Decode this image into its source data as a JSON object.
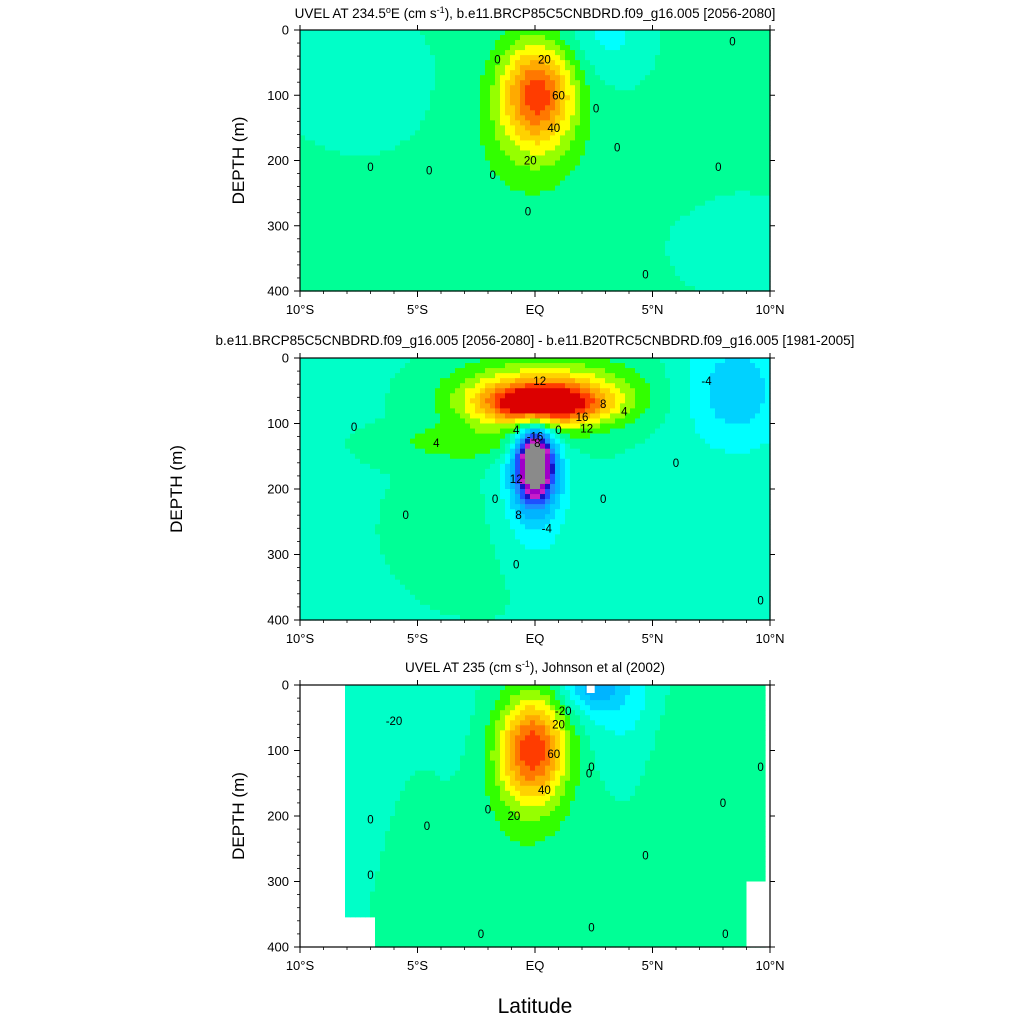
{
  "figure": {
    "xlabel": "Latitude"
  },
  "colors": {
    "levels": [
      "#8a8a8a",
      "#a000c8",
      "#c81ec8",
      "#1414c8",
      "#1e50ff",
      "#1e8cff",
      "#00b4ff",
      "#00d2ff",
      "#00ffff",
      "#00ffc8",
      "#00ff96",
      "#32ff00",
      "#96ff00",
      "#ffff00",
      "#ffd200",
      "#ffaa00",
      "#ff7800",
      "#ff3c00",
      "#dc0000"
    ],
    "background": "#ffffff",
    "axis": "#000000"
  },
  "chart_data": [
    {
      "type": "heatmap",
      "title_parts": [
        "UVEL AT 234.5",
        "o",
        "E (cm s",
        "-1",
        "), b.e11.BRCP85C5CNBDRD.f09_g16.005 [2056-2080]"
      ],
      "ylabel": "DEPTH (m)",
      "xlim": [
        -10,
        10
      ],
      "ylim": [
        400,
        0
      ],
      "x_ticks": [
        -10,
        -5,
        0,
        5,
        10
      ],
      "x_ticklabels": [
        "10°S",
        "5°S",
        "EQ",
        "5°N",
        "10°N"
      ],
      "y_ticks": [
        0,
        100,
        200,
        300,
        400
      ],
      "y_ticklabels": [
        "0",
        "100",
        "200",
        "300",
        "400"
      ],
      "contour_interval": 10,
      "contour_labels": [
        {
          "text": "20",
          "x": 0.4,
          "y": 45
        },
        {
          "text": "60",
          "x": 1.0,
          "y": 100
        },
        {
          "text": "40",
          "x": 0.8,
          "y": 150
        },
        {
          "text": "20",
          "x": -0.2,
          "y": 200
        },
        {
          "text": "0",
          "x": -1.6,
          "y": 45
        },
        {
          "text": "0",
          "x": -7.0,
          "y": 210
        },
        {
          "text": "0",
          "x": -4.5,
          "y": 215
        },
        {
          "text": "0",
          "x": -1.8,
          "y": 222
        },
        {
          "text": "0",
          "x": -0.3,
          "y": 278
        },
        {
          "text": "0",
          "x": 2.6,
          "y": 120
        },
        {
          "text": "0",
          "x": 3.5,
          "y": 180
        },
        {
          "text": "0",
          "x": 8.4,
          "y": 18
        },
        {
          "text": "0",
          "x": 7.8,
          "y": 210
        },
        {
          "text": "0",
          "x": 4.7,
          "y": 375
        }
      ]
    },
    {
      "type": "heatmap",
      "title_parts": [
        "b.e11.BRCP85C5CNBDRD.f09_g16.005 [2056-2080] - b.e11.B20TRC5CNBDRD.f09_g16.005 [1981-2005]"
      ],
      "ylabel": "DEPTH (m)",
      "xlim": [
        -10,
        10
      ],
      "ylim": [
        400,
        0
      ],
      "x_ticks": [
        -10,
        -5,
        0,
        5,
        10
      ],
      "x_ticklabels": [
        "10°S",
        "5°S",
        "EQ",
        "5°N",
        "10°N"
      ],
      "y_ticks": [
        0,
        100,
        200,
        300,
        400
      ],
      "y_ticklabels": [
        "0",
        "100",
        "200",
        "300",
        "400"
      ],
      "contour_interval": 2,
      "contour_labels": [
        {
          "text": "12",
          "x": 0.2,
          "y": 35
        },
        {
          "text": "8",
          "x": 2.9,
          "y": 70
        },
        {
          "text": "4",
          "x": 3.8,
          "y": 82
        },
        {
          "text": "16",
          "x": 2.0,
          "y": 90
        },
        {
          "text": "12",
          "x": 2.2,
          "y": 108
        },
        {
          "text": "8",
          "x": 0.1,
          "y": 130
        },
        {
          "text": "0",
          "x": 1.0,
          "y": 110
        },
        {
          "text": "4",
          "x": -0.8,
          "y": 110
        },
        {
          "text": "-16",
          "x": 0.0,
          "y": 120
        },
        {
          "text": "-4",
          "x": 7.3,
          "y": 35
        },
        {
          "text": "0",
          "x": -7.7,
          "y": 105
        },
        {
          "text": "4",
          "x": -4.2,
          "y": 130
        },
        {
          "text": "0",
          "x": 6.0,
          "y": 160
        },
        {
          "text": "12",
          "x": -0.8,
          "y": 185
        },
        {
          "text": "0",
          "x": -1.7,
          "y": 215
        },
        {
          "text": "0",
          "x": 2.9,
          "y": 215
        },
        {
          "text": "8",
          "x": -0.7,
          "y": 240
        },
        {
          "text": "-4",
          "x": 0.5,
          "y": 260
        },
        {
          "text": "0",
          "x": -5.5,
          "y": 240
        },
        {
          "text": "0",
          "x": -0.8,
          "y": 315
        },
        {
          "text": "0",
          "x": 9.6,
          "y": 370
        }
      ]
    },
    {
      "type": "heatmap",
      "title_parts": [
        "UVEL AT 235 (cm s",
        "-1",
        "), Johnson et al (2002)"
      ],
      "ylabel": "DEPTH (m)",
      "xlim": [
        -10,
        10
      ],
      "ylim": [
        400,
        0
      ],
      "x_ticks": [
        -10,
        -5,
        0,
        5,
        10
      ],
      "x_ticklabels": [
        "10°S",
        "5°S",
        "EQ",
        "5°N",
        "10°N"
      ],
      "y_ticks": [
        0,
        100,
        200,
        300,
        400
      ],
      "y_ticklabels": [
        "0",
        "100",
        "200",
        "300",
        "400"
      ],
      "contour_interval": 10,
      "contour_labels": [
        {
          "text": "-20",
          "x": 1.2,
          "y": 40
        },
        {
          "text": "20",
          "x": 1.0,
          "y": 60
        },
        {
          "text": "60",
          "x": 0.8,
          "y": 105
        },
        {
          "text": "40",
          "x": 0.4,
          "y": 160
        },
        {
          "text": "20",
          "x": -0.9,
          "y": 200
        },
        {
          "text": "-20",
          "x": -6.0,
          "y": 55
        },
        {
          "text": "0",
          "x": -7.0,
          "y": 205
        },
        {
          "text": "0",
          "x": -4.6,
          "y": 215
        },
        {
          "text": "0",
          "x": -2.0,
          "y": 190
        },
        {
          "text": "0",
          "x": 2.3,
          "y": 135
        },
        {
          "text": "0",
          "x": 2.4,
          "y": 125
        },
        {
          "text": "0",
          "x": 9.6,
          "y": 125
        },
        {
          "text": "0",
          "x": 8.0,
          "y": 180
        },
        {
          "text": "0",
          "x": 4.7,
          "y": 260
        },
        {
          "text": "0",
          "x": -7.0,
          "y": 290
        },
        {
          "text": "0",
          "x": 2.4,
          "y": 370
        },
        {
          "text": "0",
          "x": 8.1,
          "y": 380
        },
        {
          "text": "0",
          "x": -2.3,
          "y": 380
        }
      ]
    }
  ]
}
